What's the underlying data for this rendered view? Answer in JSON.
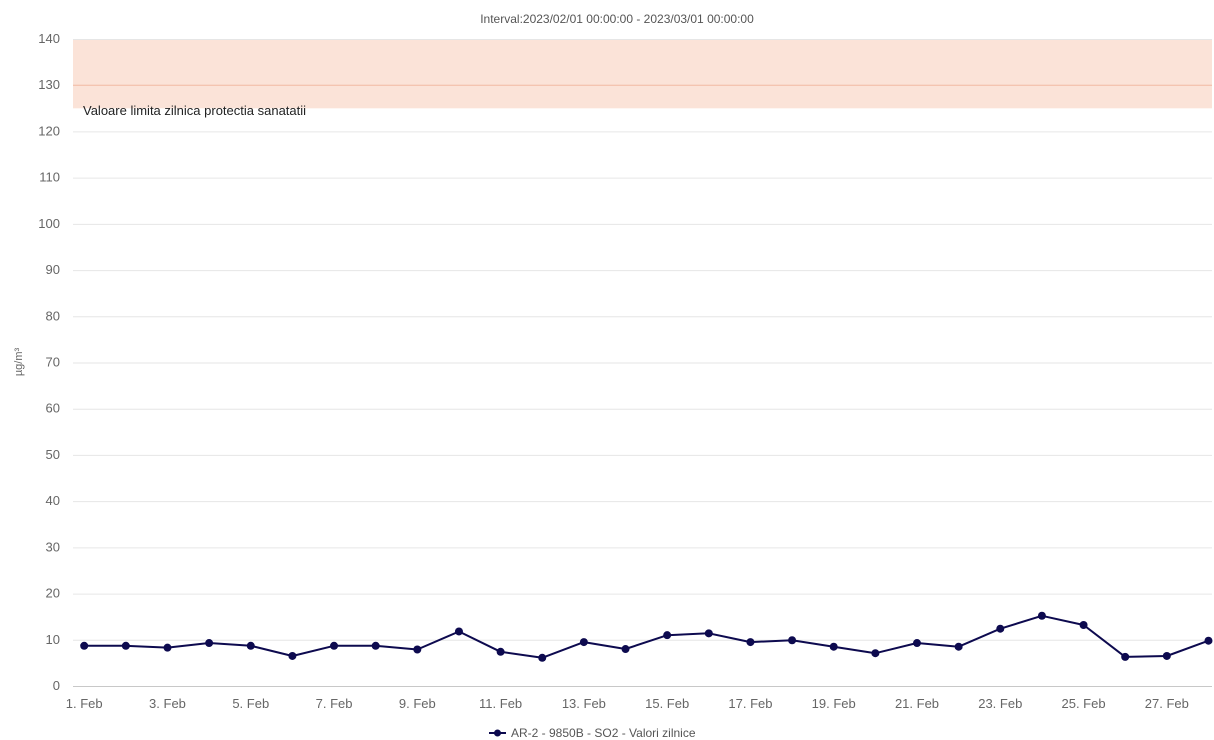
{
  "chart_data": {
    "type": "line",
    "title": "Interval:2023/02/01 00:00:00 - 2023/03/01 00:00:00",
    "ylabel": "µg/m³",
    "ylim": [
      0,
      140
    ],
    "yticks": [
      0,
      10,
      20,
      30,
      40,
      50,
      60,
      70,
      80,
      90,
      100,
      110,
      120,
      130,
      140
    ],
    "xtick_labels": [
      "1. Feb",
      "3. Feb",
      "5. Feb",
      "7. Feb",
      "9. Feb",
      "11. Feb",
      "13. Feb",
      "15. Feb",
      "17. Feb",
      "19. Feb",
      "21. Feb",
      "23. Feb",
      "25. Feb",
      "27. Feb"
    ],
    "grid": true,
    "legend_position": "bottom-center",
    "plot_band": {
      "from": 125,
      "to": 140,
      "label": "Valoare limita zilnica protectia sanatatii",
      "color": "#fbe3d8",
      "line_value": 130,
      "line_color": "#f2b9a2"
    },
    "series": [
      {
        "name": "AR-2 - 9850B - SO2 - Valori zilnice",
        "color": "#0d0a4f",
        "x": [
          "1. Feb",
          "2. Feb",
          "3. Feb",
          "4. Feb",
          "5. Feb",
          "6. Feb",
          "7. Feb",
          "8. Feb",
          "9. Feb",
          "10. Feb",
          "11. Feb",
          "12. Feb",
          "13. Feb",
          "14. Feb",
          "15. Feb",
          "16. Feb",
          "17. Feb",
          "18. Feb",
          "19. Feb",
          "20. Feb",
          "21. Feb",
          "22. Feb",
          "23. Feb",
          "24. Feb",
          "25. Feb",
          "26. Feb",
          "27. Feb",
          "28. Feb"
        ],
        "values": [
          8.7,
          8.7,
          8.3,
          9.3,
          8.7,
          6.5,
          8.7,
          8.7,
          7.9,
          11.8,
          7.4,
          6.1,
          9.5,
          8.0,
          11.0,
          11.4,
          9.5,
          9.9,
          8.5,
          7.1,
          9.3,
          8.5,
          12.4,
          15.2,
          13.2,
          6.3,
          6.5,
          9.8
        ]
      }
    ]
  }
}
